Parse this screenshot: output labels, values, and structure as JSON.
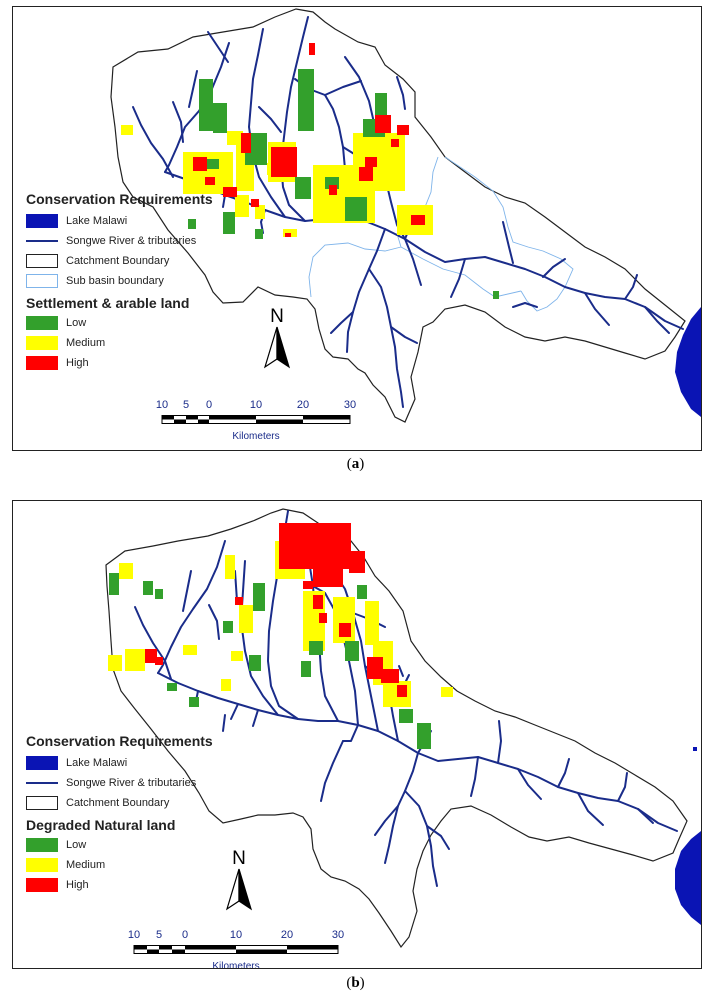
{
  "panel_a": {
    "caption": "a",
    "legend": {
      "title": "Conservation Requirements",
      "items": [
        {
          "label": "Lake Malawi",
          "kind": "fill",
          "color": "#0a14b4"
        },
        {
          "label": "Songwe River & tributaries",
          "kind": "line",
          "color": "#1a2c8a"
        },
        {
          "label": "Catchment Boundary",
          "kind": "box",
          "color": "#222222"
        },
        {
          "label": "Sub basin boundary",
          "kind": "box",
          "color": "#7fb4ea"
        }
      ],
      "subtitle": "Settlement & arable land",
      "classes": [
        {
          "label": "Low",
          "color": "#33a02c"
        },
        {
          "label": "Medium",
          "color": "#ffff00"
        },
        {
          "label": "High",
          "color": "#ff0000"
        }
      ]
    },
    "north_label": "N",
    "scale": {
      "ticks": [
        "10",
        "5",
        "0",
        "10",
        "20",
        "30"
      ],
      "unit": "Kilometers"
    }
  },
  "panel_b": {
    "caption": "b",
    "legend": {
      "title": "Conservation Requirements",
      "items": [
        {
          "label": "Lake Malawi",
          "kind": "fill",
          "color": "#0a14b4"
        },
        {
          "label": "Songwe River & tributaries",
          "kind": "line",
          "color": "#1a2c8a"
        },
        {
          "label": "Catchment Boundary",
          "kind": "box",
          "color": "#222222"
        }
      ],
      "subtitle": "Degraded Natural land",
      "classes": [
        {
          "label": "Low",
          "color": "#33a02c"
        },
        {
          "label": "Medium",
          "color": "#ffff00"
        },
        {
          "label": "High",
          "color": "#ff0000"
        }
      ]
    },
    "north_label": "N",
    "scale": {
      "ticks": [
        "10",
        "5",
        "0",
        "10",
        "20",
        "30"
      ],
      "unit": "Kilometers"
    }
  }
}
